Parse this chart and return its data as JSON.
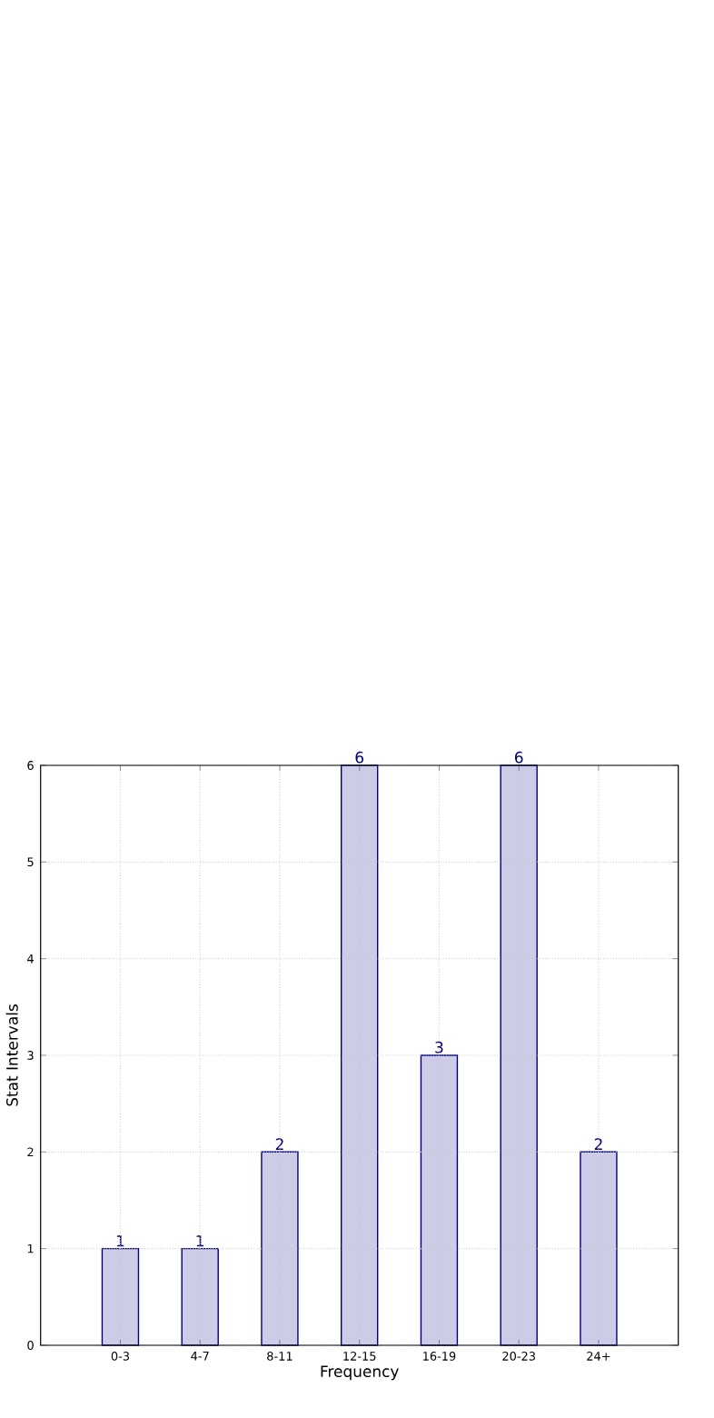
{
  "chart_data": {
    "type": "bar",
    "xlabel": "Frequency",
    "ylabel": "Stat Intervals",
    "categories": [
      "0-3",
      "4-7",
      "8-11",
      "12-15",
      "16-19",
      "20-23",
      "24+"
    ],
    "values": [
      1,
      1,
      2,
      6,
      3,
      6,
      2
    ],
    "color": "#000080",
    "ylim": [
      0,
      6
    ],
    "yticks": [
      0,
      1,
      2,
      3,
      4,
      5,
      6
    ],
    "grid": true,
    "data_labels": true
  }
}
